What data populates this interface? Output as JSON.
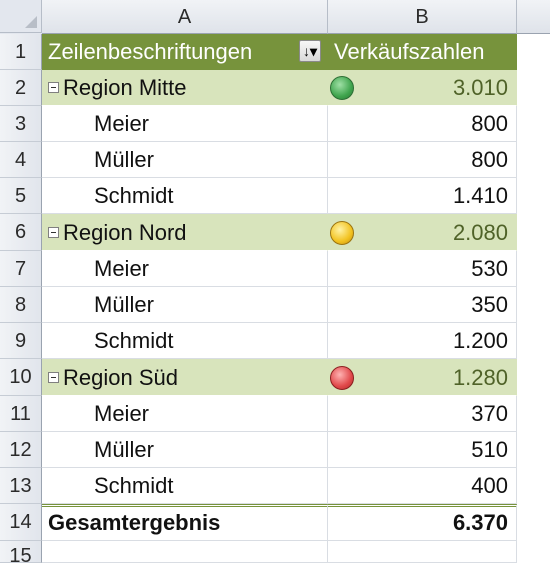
{
  "columns": {
    "a": "A",
    "b": "B"
  },
  "row_numbers": [
    "1",
    "2",
    "3",
    "4",
    "5",
    "6",
    "7",
    "8",
    "9",
    "10",
    "11",
    "12",
    "13",
    "14",
    "15"
  ],
  "pivot": {
    "header_label": "Zeilenbeschriftungen",
    "value_header": "Verkäufszahlen",
    "filter_icon": "sort-filter-icon",
    "rows": [
      {
        "label": "Region Mitte",
        "value": "3.010",
        "level": "region",
        "indicator": "green"
      },
      {
        "label": "Meier",
        "value": "800",
        "level": "person"
      },
      {
        "label": "Müller",
        "value": "800",
        "level": "person"
      },
      {
        "label": "Schmidt",
        "value": "1.410",
        "level": "person"
      },
      {
        "label": "Region Nord",
        "value": "2.080",
        "level": "region",
        "indicator": "yellow"
      },
      {
        "label": "Meier",
        "value": "530",
        "level": "person"
      },
      {
        "label": "Müller",
        "value": "350",
        "level": "person"
      },
      {
        "label": "Schmidt",
        "value": "1.200",
        "level": "person"
      },
      {
        "label": "Region Süd",
        "value": "1.280",
        "level": "region",
        "indicator": "red"
      },
      {
        "label": "Meier",
        "value": "370",
        "level": "person"
      },
      {
        "label": "Müller",
        "value": "510",
        "level": "person"
      },
      {
        "label": "Schmidt",
        "value": "400",
        "level": "person"
      }
    ],
    "total_label": "Gesamtergebnis",
    "total_value": "6.370"
  },
  "colors": {
    "header_bg": "#77933c",
    "region_bg": "#d8e4bc",
    "indicator_green": "#3fa44d",
    "indicator_yellow": "#f2c21f",
    "indicator_red": "#e0484a"
  }
}
